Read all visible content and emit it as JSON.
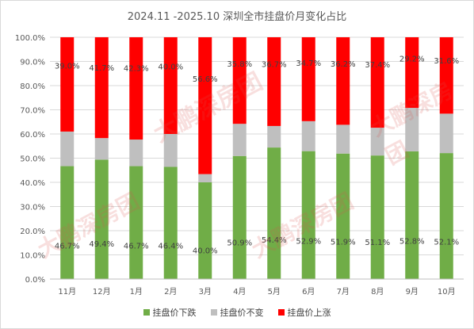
{
  "chart_data": {
    "type": "bar",
    "stacked": true,
    "title": "2024.11 -2025.10 深圳全市挂盘价月变化占比",
    "categories": [
      "11月",
      "12月",
      "1月",
      "2月",
      "3月",
      "4月",
      "5月",
      "6月",
      "7月",
      "8月",
      "9月",
      "10月"
    ],
    "ylim": [
      0,
      100
    ],
    "ytick_labels": [
      "0.0%",
      "10.0%",
      "20.0%",
      "30.0%",
      "40.0%",
      "50.0%",
      "60.0%",
      "70.0%",
      "80.0%",
      "90.0%",
      "100.0%"
    ],
    "series": [
      {
        "name": "挂盘价下跌",
        "color": "#70ad47",
        "values": [
          46.7,
          49.4,
          46.7,
          46.4,
          40.0,
          50.9,
          54.4,
          52.9,
          51.9,
          51.1,
          52.8,
          52.1
        ],
        "labels": [
          "46.7%",
          "49.4%",
          "46.7%",
          "46.4%",
          "40.0%",
          "50.9%",
          "54.4%",
          "52.9%",
          "51.9%",
          "51.1%",
          "52.8%",
          "52.1%"
        ]
      },
      {
        "name": "挂盘价不变",
        "color": "#bfbfbf",
        "values": [
          14.3,
          8.9,
          11.0,
          13.6,
          3.4,
          13.3,
          8.9,
          12.4,
          11.9,
          11.5,
          18.0,
          16.3
        ],
        "labels": []
      },
      {
        "name": "挂盘价上涨",
        "color": "#ff0000",
        "values": [
          39.0,
          41.7,
          42.3,
          40.0,
          56.6,
          35.8,
          36.7,
          34.7,
          36.2,
          37.4,
          29.2,
          31.6
        ],
        "labels": [
          "39.0%",
          "41.7%",
          "42.3%",
          "40.0%",
          "56.6%",
          "35.8%",
          "36.7%",
          "34.7%",
          "36.2%",
          "37.4%",
          "29.2%",
          "31.6%"
        ]
      }
    ],
    "grid": true,
    "legend_position": "bottom"
  },
  "watermark": {
    "text": "大鹏深房团"
  }
}
